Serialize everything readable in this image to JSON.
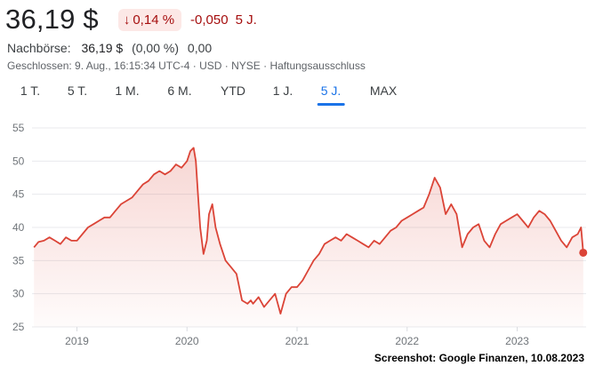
{
  "header": {
    "price": "36,19 $",
    "change_pct": "0,14 %",
    "change_abs": "-0,050",
    "period_label": "5 J."
  },
  "after_hours": {
    "label": "Nachbörse:",
    "price": "36,19 $",
    "change_pct": "(0,00 %)",
    "change_abs": "0,00"
  },
  "meta": "Geschlossen: 9. Aug., 16:15:34 UTC-4 · USD · NYSE · Haftungsausschluss",
  "tabs": [
    "1 T.",
    "5 T.",
    "1 M.",
    "6 M.",
    "YTD",
    "1 J.",
    "5 J.",
    "MAX"
  ],
  "active_tab": "5 J.",
  "colors": {
    "line": "#db4437",
    "negative": "#a50e0e",
    "badge_bg": "#fce8e6",
    "accent": "#1a73e8"
  },
  "credit": "Screenshot: Google Finanzen, 10.08.2023",
  "chart_data": {
    "type": "area",
    "x_ticks": [
      "2019",
      "2020",
      "2021",
      "2022",
      "2023"
    ],
    "y_ticks": [
      25,
      30,
      35,
      40,
      45,
      50,
      55
    ],
    "ylim": [
      25,
      55
    ],
    "xlim": [
      2018.6,
      2023.61
    ],
    "grid": true,
    "series": [
      {
        "x": [
          2018.61,
          2018.65,
          2018.7,
          2018.75,
          2018.8,
          2018.85,
          2018.9,
          2018.95,
          2019.0,
          2019.05,
          2019.1,
          2019.15,
          2019.2,
          2019.25,
          2019.3,
          2019.35,
          2019.4,
          2019.45,
          2019.5,
          2019.55,
          2019.6,
          2019.65,
          2019.7,
          2019.75,
          2019.8,
          2019.85,
          2019.9,
          2019.95,
          2020.0,
          2020.03,
          2020.06,
          2020.08,
          2020.1,
          2020.12,
          2020.15,
          2020.18,
          2020.2,
          2020.23,
          2020.26,
          2020.3,
          2020.35,
          2020.4,
          2020.45,
          2020.5,
          2020.55,
          2020.58,
          2020.6,
          2020.65,
          2020.7,
          2020.75,
          2020.8,
          2020.85,
          2020.9,
          2020.95,
          2021.0,
          2021.05,
          2021.1,
          2021.15,
          2021.2,
          2021.25,
          2021.3,
          2021.35,
          2021.4,
          2021.45,
          2021.5,
          2021.55,
          2021.6,
          2021.65,
          2021.7,
          2021.75,
          2021.8,
          2021.85,
          2021.9,
          2021.95,
          2022.0,
          2022.05,
          2022.1,
          2022.15,
          2022.2,
          2022.25,
          2022.3,
          2022.35,
          2022.4,
          2022.45,
          2022.5,
          2022.55,
          2022.6,
          2022.65,
          2022.7,
          2022.75,
          2022.8,
          2022.85,
          2022.9,
          2022.95,
          2023.0,
          2023.05,
          2023.1,
          2023.15,
          2023.2,
          2023.25,
          2023.3,
          2023.35,
          2023.4,
          2023.45,
          2023.5,
          2023.55,
          2023.58,
          2023.6
        ],
        "values": [
          37.0,
          37.8,
          38.0,
          38.5,
          38.0,
          37.5,
          38.5,
          38.0,
          38.0,
          39.0,
          40.0,
          40.5,
          41.0,
          41.5,
          41.5,
          42.5,
          43.5,
          44.0,
          44.5,
          45.5,
          46.5,
          47.0,
          48.0,
          48.5,
          48.0,
          48.5,
          49.5,
          49.0,
          50.0,
          51.5,
          52.0,
          50.0,
          45.0,
          40.0,
          36.0,
          38.0,
          42.0,
          43.5,
          40.0,
          37.5,
          35.0,
          34.0,
          33.0,
          29.0,
          28.5,
          29.0,
          28.5,
          29.5,
          28.0,
          29.0,
          30.0,
          27.0,
          30.0,
          31.0,
          31.0,
          32.0,
          33.5,
          35.0,
          36.0,
          37.5,
          38.0,
          38.5,
          38.0,
          39.0,
          38.5,
          38.0,
          37.5,
          37.0,
          38.0,
          37.5,
          38.5,
          39.5,
          40.0,
          41.0,
          41.5,
          42.0,
          42.5,
          43.0,
          45.0,
          47.5,
          46.0,
          42.0,
          43.5,
          42.0,
          37.0,
          39.0,
          40.0,
          40.5,
          38.0,
          37.0,
          39.0,
          40.5,
          41.0,
          41.5,
          42.0,
          41.0,
          40.0,
          41.5,
          42.5,
          42.0,
          41.0,
          39.5,
          38.0,
          37.0,
          38.5,
          39.0,
          40.0,
          36.19
        ]
      }
    ]
  }
}
